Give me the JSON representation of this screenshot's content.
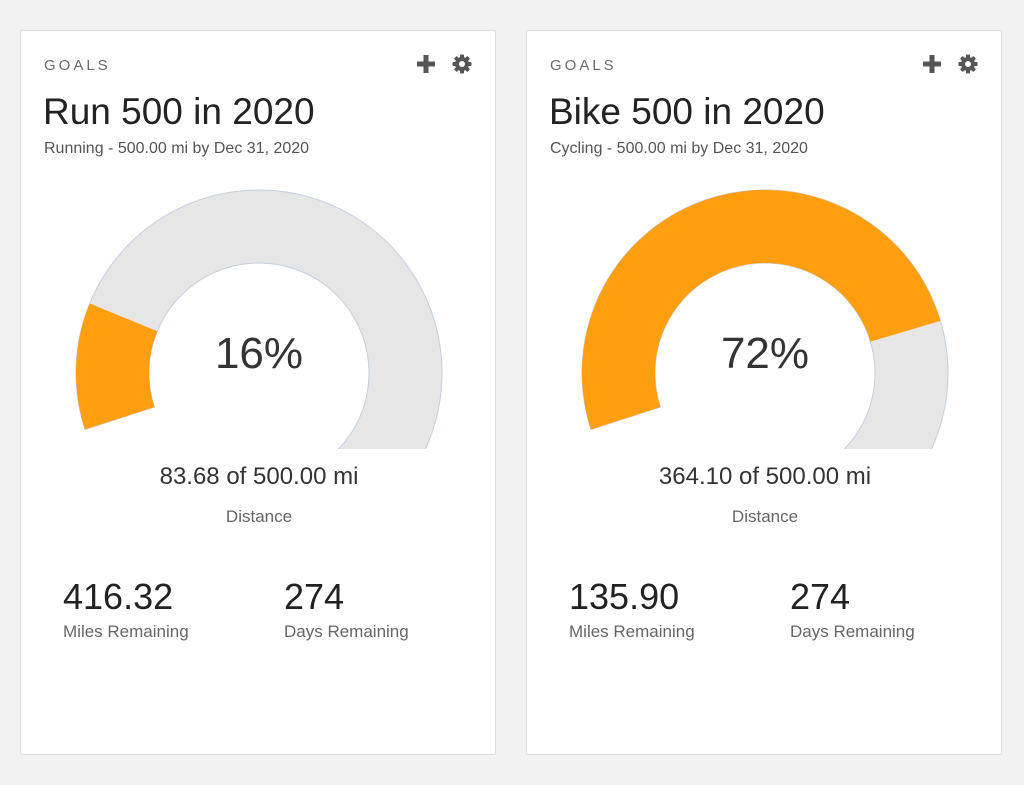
{
  "colors": {
    "accent": "#ff9f10",
    "track": "#e6e6e6",
    "track_border": "#c6cedf",
    "icon": "#555555"
  },
  "goals": [
    {
      "section_label": "GOALS",
      "title": "Run 500 in 2020",
      "subtitle": "Running - 500.00 mi by Dec 31, 2020",
      "progress_fraction": 0.16,
      "percent_label": "16%",
      "progress_text": "83.68 of 500.00 mi",
      "metric_label": "Distance",
      "miles_remaining": "416.32",
      "miles_remaining_label": "Miles Remaining",
      "days_remaining": "274",
      "days_remaining_label": "Days Remaining"
    },
    {
      "section_label": "GOALS",
      "title": "Bike 500 in 2020",
      "subtitle": "Cycling - 500.00 mi by Dec 31, 2020",
      "progress_fraction": 0.72,
      "percent_label": "72%",
      "progress_text": "364.10 of 500.00 mi",
      "metric_label": "Distance",
      "miles_remaining": "135.90",
      "miles_remaining_label": "Miles Remaining",
      "days_remaining": "274",
      "days_remaining_label": "Days Remaining"
    }
  ],
  "icons": {
    "add": "plus-icon",
    "settings": "gear-icon"
  }
}
